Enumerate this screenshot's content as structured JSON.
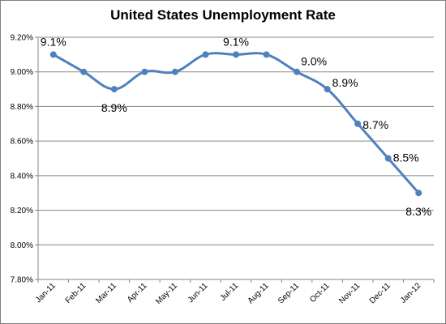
{
  "chart_data": {
    "type": "line",
    "title": "United States Unemployment Rate",
    "categories": [
      "Jan-11",
      "Feb-11",
      "Mar-11",
      "Apr-11",
      "May-11",
      "Jun-11",
      "Jul-11",
      "Aug-11",
      "Sep-11",
      "Oct-11",
      "Nov-11",
      "Dec-11",
      "Jan-12"
    ],
    "series": [
      {
        "values": [
          9.1,
          9.0,
          8.9,
          9.0,
          9.0,
          9.1,
          9.1,
          9.1,
          9.0,
          8.9,
          8.7,
          8.5,
          8.3
        ],
        "color": "#4f81bd"
      }
    ],
    "data_labels": [
      {
        "index": 0,
        "text": "9.1%"
      },
      {
        "index": 2,
        "text": "8.9%"
      },
      {
        "index": 6,
        "text": "9.1%"
      },
      {
        "index": 8,
        "text": "9.0%"
      },
      {
        "index": 9,
        "text": "8.9%"
      },
      {
        "index": 10,
        "text": "8.7%"
      },
      {
        "index": 11,
        "text": "8.5%"
      },
      {
        "index": 12,
        "text": "8.3%"
      }
    ],
    "y_ticks": [
      "7.80%",
      "8.00%",
      "8.20%",
      "8.40%",
      "8.60%",
      "8.80%",
      "9.00%",
      "9.20%"
    ],
    "ylim": [
      7.8,
      9.2
    ],
    "grid": true,
    "legend": false
  }
}
